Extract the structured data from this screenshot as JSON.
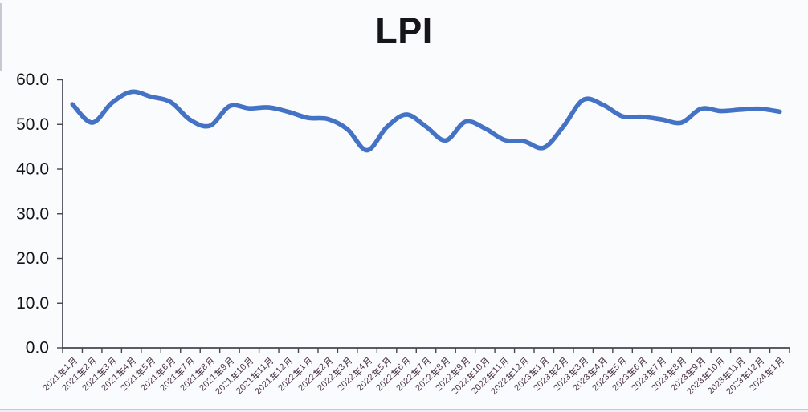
{
  "page": {
    "background": "#fafbfd",
    "bottom_border_color": "#c3cadb",
    "left_edge_color": "#9aa0aa"
  },
  "chart_data": {
    "type": "line",
    "title": "LPI",
    "xlabel": "",
    "ylabel": "",
    "ylim": [
      0,
      60
    ],
    "ytick_step": 10,
    "ytick_labels": [
      "0.0",
      "10.0",
      "20.0",
      "30.0",
      "40.0",
      "50.0",
      "60.0"
    ],
    "grid": "off",
    "legend": "none",
    "smooth_line": true,
    "line_color": "#4472c4",
    "axis_color": "#45454d",
    "x_label_color": "#4e384c",
    "y_label_color": "#141418",
    "x_label_rotation_deg": -45,
    "categories": [
      "2021年1月",
      "2021年2月",
      "2021年3月",
      "2021年4月",
      "2021年5月",
      "2021年6月",
      "2021年7月",
      "2021年8月",
      "2021年9月",
      "2021年10月",
      "2021年11月",
      "2021年12月",
      "2022年1月",
      "2022年2月",
      "2022年3月",
      "2022年4月",
      "2022年5月",
      "2022年6月",
      "2022年7月",
      "2022年8月",
      "2022年9月",
      "2022年10月",
      "2022年11月",
      "2022年12月",
      "2023年1月",
      "2023年2月",
      "2023年3月",
      "2023年4月",
      "2023年5月",
      "2023年6月",
      "2023年7月",
      "2023年8月",
      "2023年9月",
      "2023年10月",
      "2023年11月",
      "2023年12月",
      "2024年1月"
    ],
    "values": [
      54.5,
      50.4,
      54.8,
      57.3,
      56.2,
      55.0,
      51.0,
      49.7,
      54.1,
      53.6,
      53.8,
      52.8,
      51.45,
      51.2,
      48.9,
      44.2,
      49.4,
      52.2,
      49.5,
      46.4,
      50.6,
      49.1,
      46.5,
      46.2,
      44.8,
      49.6,
      55.5,
      54.4,
      51.8,
      51.7,
      51.1,
      50.4,
      53.5,
      53.0,
      53.3,
      53.5,
      52.85
    ]
  }
}
